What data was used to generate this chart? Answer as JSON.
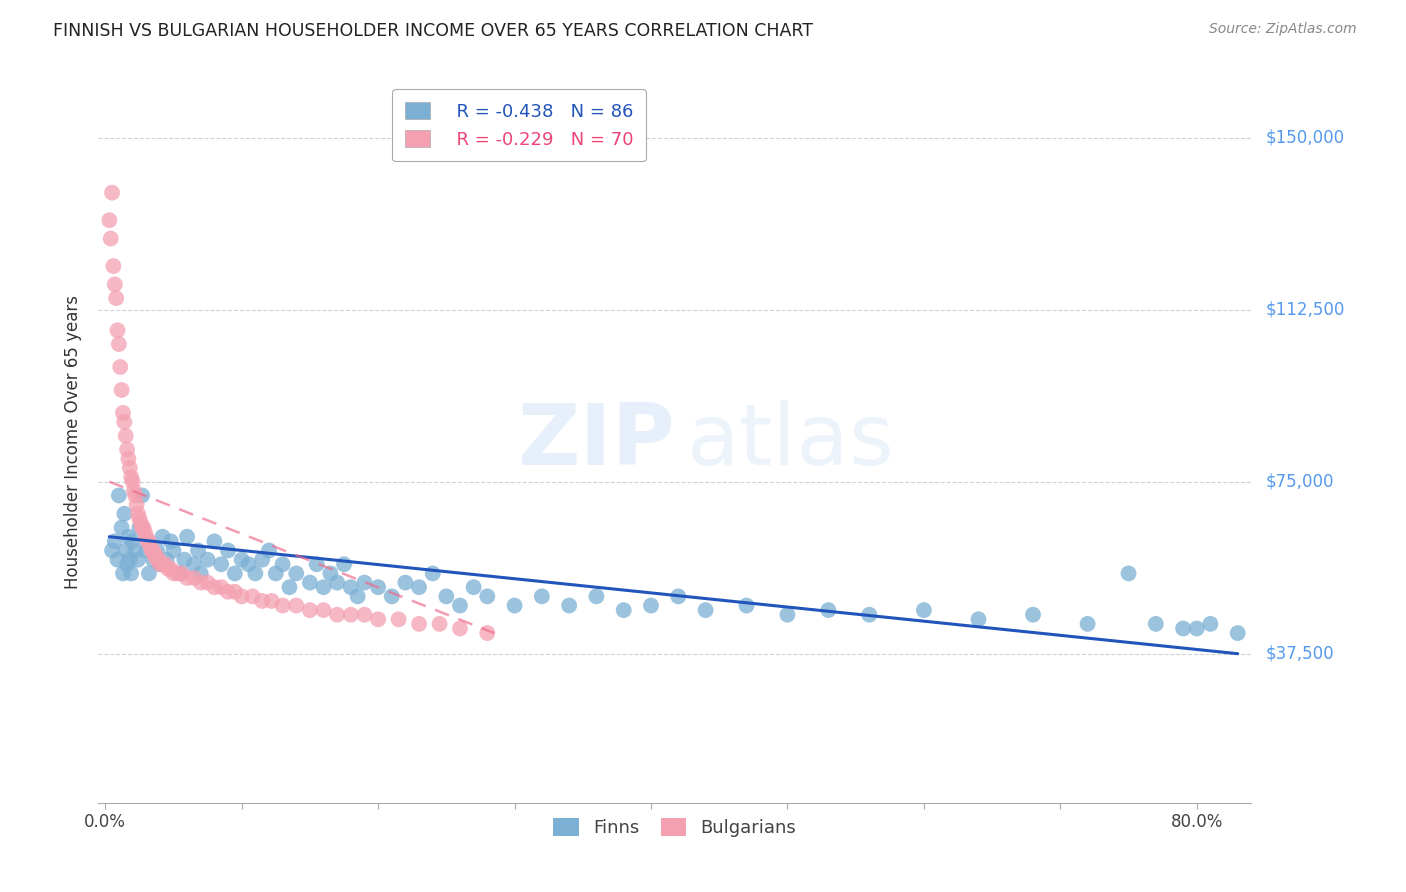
{
  "title": "FINNISH VS BULGARIAN HOUSEHOLDER INCOME OVER 65 YEARS CORRELATION CHART",
  "source": "Source: ZipAtlas.com",
  "ylabel": "Householder Income Over 65 years",
  "ytick_labels": [
    "$37,500",
    "$75,000",
    "$112,500",
    "$150,000"
  ],
  "ytick_values": [
    37500,
    75000,
    112500,
    150000
  ],
  "ymin": 5000,
  "ymax": 162500,
  "xmin": -0.005,
  "xmax": 0.84,
  "watermark_line1": "ZIP",
  "watermark_line2": "atlas",
  "finn_R": -0.438,
  "finn_N": 86,
  "bulg_R": -0.229,
  "bulg_N": 70,
  "finn_color": "#7BAFD4",
  "bulg_color": "#F4A0B0",
  "finn_line_color": "#2255BB",
  "bulg_line_color": "#EE6688",
  "finn_label_color": "#2255BB",
  "bulg_label_color": "#EE4477",
  "finns_x": [
    0.005,
    0.007,
    0.009,
    0.01,
    0.012,
    0.013,
    0.014,
    0.015,
    0.016,
    0.017,
    0.018,
    0.019,
    0.02,
    0.022,
    0.024,
    0.025,
    0.027,
    0.03,
    0.032,
    0.035,
    0.038,
    0.04,
    0.042,
    0.045,
    0.048,
    0.05,
    0.055,
    0.058,
    0.06,
    0.065,
    0.068,
    0.07,
    0.075,
    0.08,
    0.085,
    0.09,
    0.095,
    0.1,
    0.105,
    0.11,
    0.115,
    0.12,
    0.125,
    0.13,
    0.135,
    0.14,
    0.15,
    0.155,
    0.16,
    0.165,
    0.17,
    0.175,
    0.18,
    0.185,
    0.19,
    0.2,
    0.21,
    0.22,
    0.23,
    0.24,
    0.25,
    0.26,
    0.27,
    0.28,
    0.3,
    0.32,
    0.34,
    0.36,
    0.38,
    0.4,
    0.42,
    0.44,
    0.47,
    0.5,
    0.53,
    0.56,
    0.6,
    0.64,
    0.68,
    0.72,
    0.75,
    0.77,
    0.79,
    0.81,
    0.83,
    0.8
  ],
  "finns_y": [
    60000,
    62000,
    58000,
    72000,
    65000,
    55000,
    68000,
    60000,
    57000,
    63000,
    58000,
    55000,
    62000,
    60000,
    58000,
    65000,
    72000,
    60000,
    55000,
    58000,
    60000,
    57000,
    63000,
    58000,
    62000,
    60000,
    55000,
    58000,
    63000,
    57000,
    60000,
    55000,
    58000,
    62000,
    57000,
    60000,
    55000,
    58000,
    57000,
    55000,
    58000,
    60000,
    55000,
    57000,
    52000,
    55000,
    53000,
    57000,
    52000,
    55000,
    53000,
    57000,
    52000,
    50000,
    53000,
    52000,
    50000,
    53000,
    52000,
    55000,
    50000,
    48000,
    52000,
    50000,
    48000,
    50000,
    48000,
    50000,
    47000,
    48000,
    50000,
    47000,
    48000,
    46000,
    47000,
    46000,
    47000,
    45000,
    46000,
    44000,
    55000,
    44000,
    43000,
    44000,
    42000,
    43000
  ],
  "bulgarians_x": [
    0.003,
    0.004,
    0.005,
    0.006,
    0.007,
    0.008,
    0.009,
    0.01,
    0.011,
    0.012,
    0.013,
    0.014,
    0.015,
    0.016,
    0.017,
    0.018,
    0.019,
    0.02,
    0.021,
    0.022,
    0.023,
    0.024,
    0.025,
    0.026,
    0.027,
    0.028,
    0.029,
    0.03,
    0.031,
    0.032,
    0.033,
    0.034,
    0.035,
    0.036,
    0.037,
    0.038,
    0.039,
    0.04,
    0.042,
    0.044,
    0.046,
    0.048,
    0.05,
    0.053,
    0.056,
    0.06,
    0.065,
    0.07,
    0.075,
    0.08,
    0.085,
    0.09,
    0.095,
    0.1,
    0.108,
    0.115,
    0.122,
    0.13,
    0.14,
    0.15,
    0.16,
    0.17,
    0.18,
    0.19,
    0.2,
    0.215,
    0.23,
    0.245,
    0.26,
    0.28
  ],
  "bulgarians_y": [
    132000,
    128000,
    138000,
    122000,
    118000,
    115000,
    108000,
    105000,
    100000,
    95000,
    90000,
    88000,
    85000,
    82000,
    80000,
    78000,
    76000,
    75000,
    73000,
    72000,
    70000,
    68000,
    67000,
    66000,
    65000,
    65000,
    64000,
    63000,
    62000,
    62000,
    61000,
    60000,
    60000,
    59000,
    59000,
    58000,
    58000,
    57000,
    57000,
    57000,
    56000,
    56000,
    55000,
    55000,
    55000,
    54000,
    54000,
    53000,
    53000,
    52000,
    52000,
    51000,
    51000,
    50000,
    50000,
    49000,
    49000,
    48000,
    48000,
    47000,
    47000,
    46000,
    46000,
    46000,
    45000,
    45000,
    44000,
    44000,
    43000,
    42000
  ],
  "finn_trendline_x": [
    0.003,
    0.83
  ],
  "finn_trendline_y": [
    63000,
    37500
  ],
  "bulg_trendline_x": [
    0.003,
    0.285
  ],
  "bulg_trendline_y": [
    75000,
    42000
  ]
}
